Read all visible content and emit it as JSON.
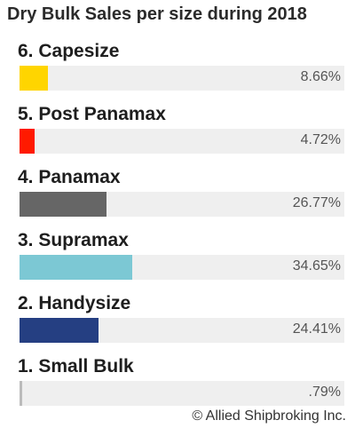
{
  "chart_data": {
    "type": "bar",
    "orientation": "horizontal",
    "title": "Dry Bulk Sales per size  during 2018",
    "categories": [
      "6. Capesize",
      "5. Post Panamax",
      "4. Panamax",
      "3. Supramax",
      "2. Handysize",
      "1. Small Bulk"
    ],
    "values": [
      8.66,
      4.72,
      26.77,
      34.65,
      24.41,
      0.79
    ],
    "value_labels": [
      "8.66%",
      "4.72%",
      "26.77%",
      "34.65%",
      "24.41%",
      ".79%"
    ],
    "colors": [
      "#ffd500",
      "#ff1a00",
      "#666666",
      "#7cc8d4",
      "#253f82",
      "#bbbbbb"
    ],
    "xlim": [
      0,
      100
    ],
    "grid": false,
    "legend": "none"
  },
  "footer": {
    "copyright": "© Allied Shipbroking Inc."
  }
}
